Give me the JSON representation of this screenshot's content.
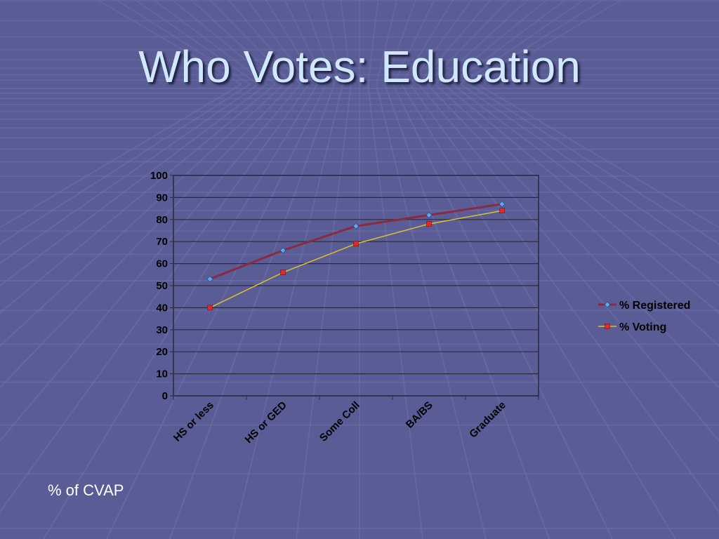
{
  "slide": {
    "title": "Who Votes:  Education",
    "footnote": "% of CVAP"
  },
  "colors": {
    "background": "#5a5c96",
    "title": "#cfe8ff",
    "registered_line": "#8b2a3e",
    "registered_marker": "#5aa8f0",
    "voting_line": "#d6c42a",
    "voting_marker": "#e02a2a",
    "gridline": "#2a2a3e"
  },
  "chart_data": {
    "type": "line",
    "categories": [
      "HS or less",
      "HS or GED",
      "Some Coll",
      "BA/BS",
      "Graduate"
    ],
    "series": [
      {
        "name": "% Registered",
        "values": [
          53,
          66,
          77,
          82,
          87
        ]
      },
      {
        "name": "% Voting",
        "values": [
          40,
          56,
          69,
          78,
          84
        ]
      }
    ],
    "ylim": [
      0,
      100
    ],
    "yticks": [
      0,
      10,
      20,
      30,
      40,
      50,
      60,
      70,
      80,
      90,
      100
    ],
    "grid": true,
    "legend": "right"
  }
}
